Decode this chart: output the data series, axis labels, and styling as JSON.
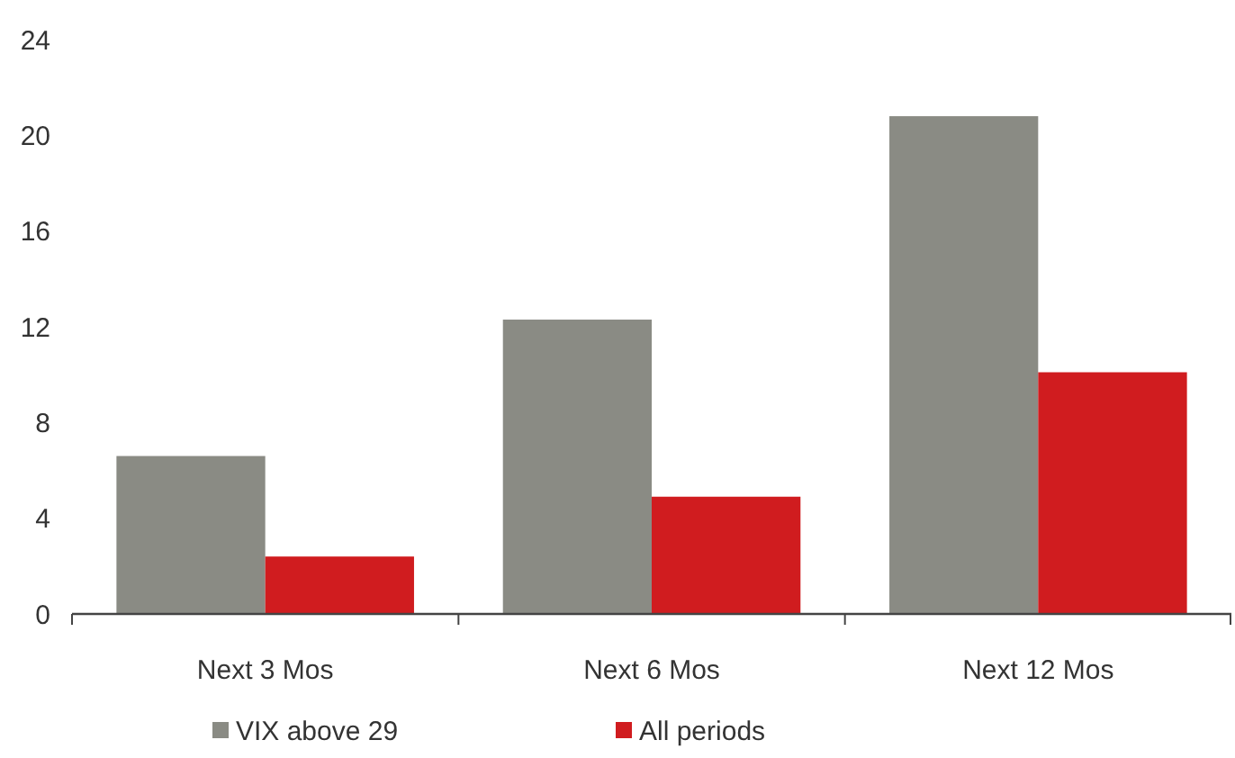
{
  "chart_data": {
    "type": "bar",
    "categories": [
      "Next 3 Mos",
      "Next 6 Mos",
      "Next 12 Mos"
    ],
    "series": [
      {
        "name": "VIX above 29",
        "color": "#8a8b84",
        "values": [
          6.6,
          12.3,
          20.8
        ]
      },
      {
        "name": "All periods",
        "color": "#d01c1f",
        "values": [
          2.4,
          4.9,
          10.1
        ]
      }
    ],
    "ylim": [
      0,
      24
    ],
    "yticks": [
      0,
      4,
      8,
      12,
      16,
      20,
      24
    ],
    "grid": false,
    "legend": "bottom"
  }
}
